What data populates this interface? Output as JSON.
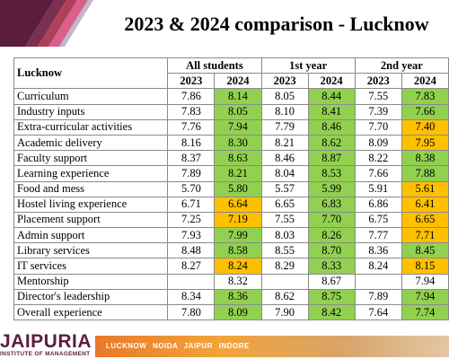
{
  "title": "2023 & 2024 comparison - Lucknow",
  "table": {
    "corner_label": "Lucknow",
    "groups": [
      "All students",
      "1st year",
      "2nd year"
    ],
    "years": [
      "2023",
      "2024"
    ],
    "rows": [
      {
        "label": "Curriculum",
        "values": [
          "7.86",
          "8.14",
          "8.05",
          "8.44",
          "7.55",
          "7.83"
        ]
      },
      {
        "label": "Industry inputs",
        "values": [
          "7.83",
          "8.05",
          "8.10",
          "8.41",
          "7.39",
          "7.66"
        ]
      },
      {
        "label": "Extra-curricular activities",
        "values": [
          "7.76",
          "7.94",
          "7.79",
          "8.46",
          "7.70",
          "7.40"
        ]
      },
      {
        "label": "Academic delivery",
        "values": [
          "8.16",
          "8.30",
          "8.21",
          "8.62",
          "8.09",
          "7.95"
        ]
      },
      {
        "label": "Faculty support",
        "values": [
          "8.37",
          "8.63",
          "8.46",
          "8.87",
          "8.22",
          "8.38"
        ]
      },
      {
        "label": "Learning experience",
        "values": [
          "7.89",
          "8.21",
          "8.04",
          "8.53",
          "7.66",
          "7.88"
        ]
      },
      {
        "label": "Food and mess",
        "values": [
          "5.70",
          "5.80",
          "5.57",
          "5.99",
          "5.91",
          "5.61"
        ]
      },
      {
        "label": "Hostel living experience",
        "values": [
          "6.71",
          "6.64",
          "6.65",
          "6.83",
          "6.86",
          "6.41"
        ]
      },
      {
        "label": "Placement support",
        "values": [
          "7.25",
          "7.19",
          "7.55",
          "7.70",
          "6.75",
          "6.65"
        ]
      },
      {
        "label": "Admin support",
        "values": [
          "7.93",
          "7.99",
          "8.03",
          "8.26",
          "7.77",
          "7.71"
        ]
      },
      {
        "label": "Library services",
        "values": [
          "8.48",
          "8.58",
          "8.55",
          "8.70",
          "8.36",
          "8.45"
        ]
      },
      {
        "label": "IT services",
        "values": [
          "8.27",
          "8.24",
          "8.29",
          "8.33",
          "8.24",
          "8.15"
        ]
      },
      {
        "label": "Mentorship",
        "values": [
          "",
          "8.32",
          "",
          "8.67",
          "",
          "7.94"
        ]
      },
      {
        "label": "Director's leadership",
        "values": [
          "8.34",
          "8.36",
          "8.62",
          "8.75",
          "7.89",
          "7.94"
        ]
      },
      {
        "label": "Overall experience",
        "values": [
          "7.80",
          "8.09",
          "7.90",
          "8.42",
          "7.64",
          "7.74"
        ]
      }
    ],
    "highlights": [
      [
        "",
        "g",
        "",
        "g",
        "",
        "g"
      ],
      [
        "",
        "g",
        "",
        "g",
        "",
        "g"
      ],
      [
        "",
        "g",
        "",
        "g",
        "",
        "o"
      ],
      [
        "",
        "g",
        "",
        "g",
        "",
        "o"
      ],
      [
        "",
        "g",
        "",
        "g",
        "",
        "g"
      ],
      [
        "",
        "g",
        "",
        "g",
        "",
        "g"
      ],
      [
        "",
        "g",
        "",
        "g",
        "",
        "o"
      ],
      [
        "",
        "o",
        "",
        "g",
        "",
        "o"
      ],
      [
        "",
        "o",
        "",
        "g",
        "",
        "o"
      ],
      [
        "",
        "g",
        "",
        "g",
        "",
        "o"
      ],
      [
        "",
        "g",
        "",
        "g",
        "",
        "g"
      ],
      [
        "",
        "o",
        "",
        "g",
        "",
        "o"
      ],
      [
        "",
        "",
        "",
        "",
        "",
        ""
      ],
      [
        "",
        "g",
        "",
        "g",
        "",
        "g"
      ],
      [
        "",
        "g",
        "",
        "g",
        "",
        "g"
      ]
    ]
  },
  "colors": {
    "increase": "#92d050",
    "decrease": "#ffc000",
    "brand": "#5a1e3c"
  },
  "footer": {
    "brand": "JAIPURIA",
    "brand_sub": "INSTITUTE OF MANAGEMENT",
    "cities": "LUCKNOW NOIDA JAIPUR INDORE"
  }
}
